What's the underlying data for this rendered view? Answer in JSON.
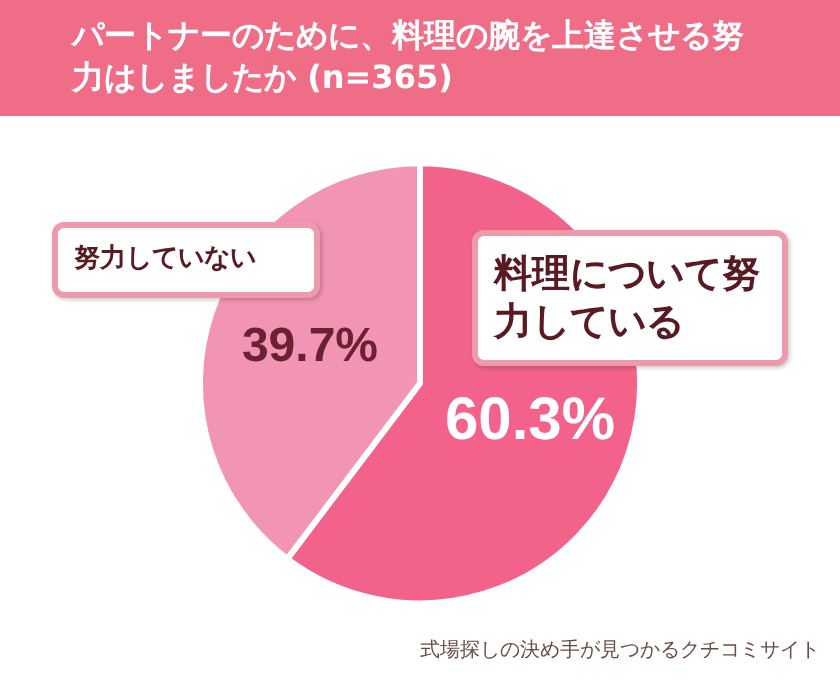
{
  "chart_data": {
    "type": "pie",
    "title": "パートナーのために、料理の腕を上達させる努力はしましたか (n=365)",
    "categories": [
      "料理について努力している",
      "努力していない"
    ],
    "values": [
      60.3,
      39.7
    ],
    "colors": [
      "#f2628b",
      "#f295b5"
    ],
    "value_labels": [
      "60.3%",
      "39.7%"
    ],
    "annotations": [
      "式場探しの決め手が見つかるクチコミサイト"
    ]
  }
}
